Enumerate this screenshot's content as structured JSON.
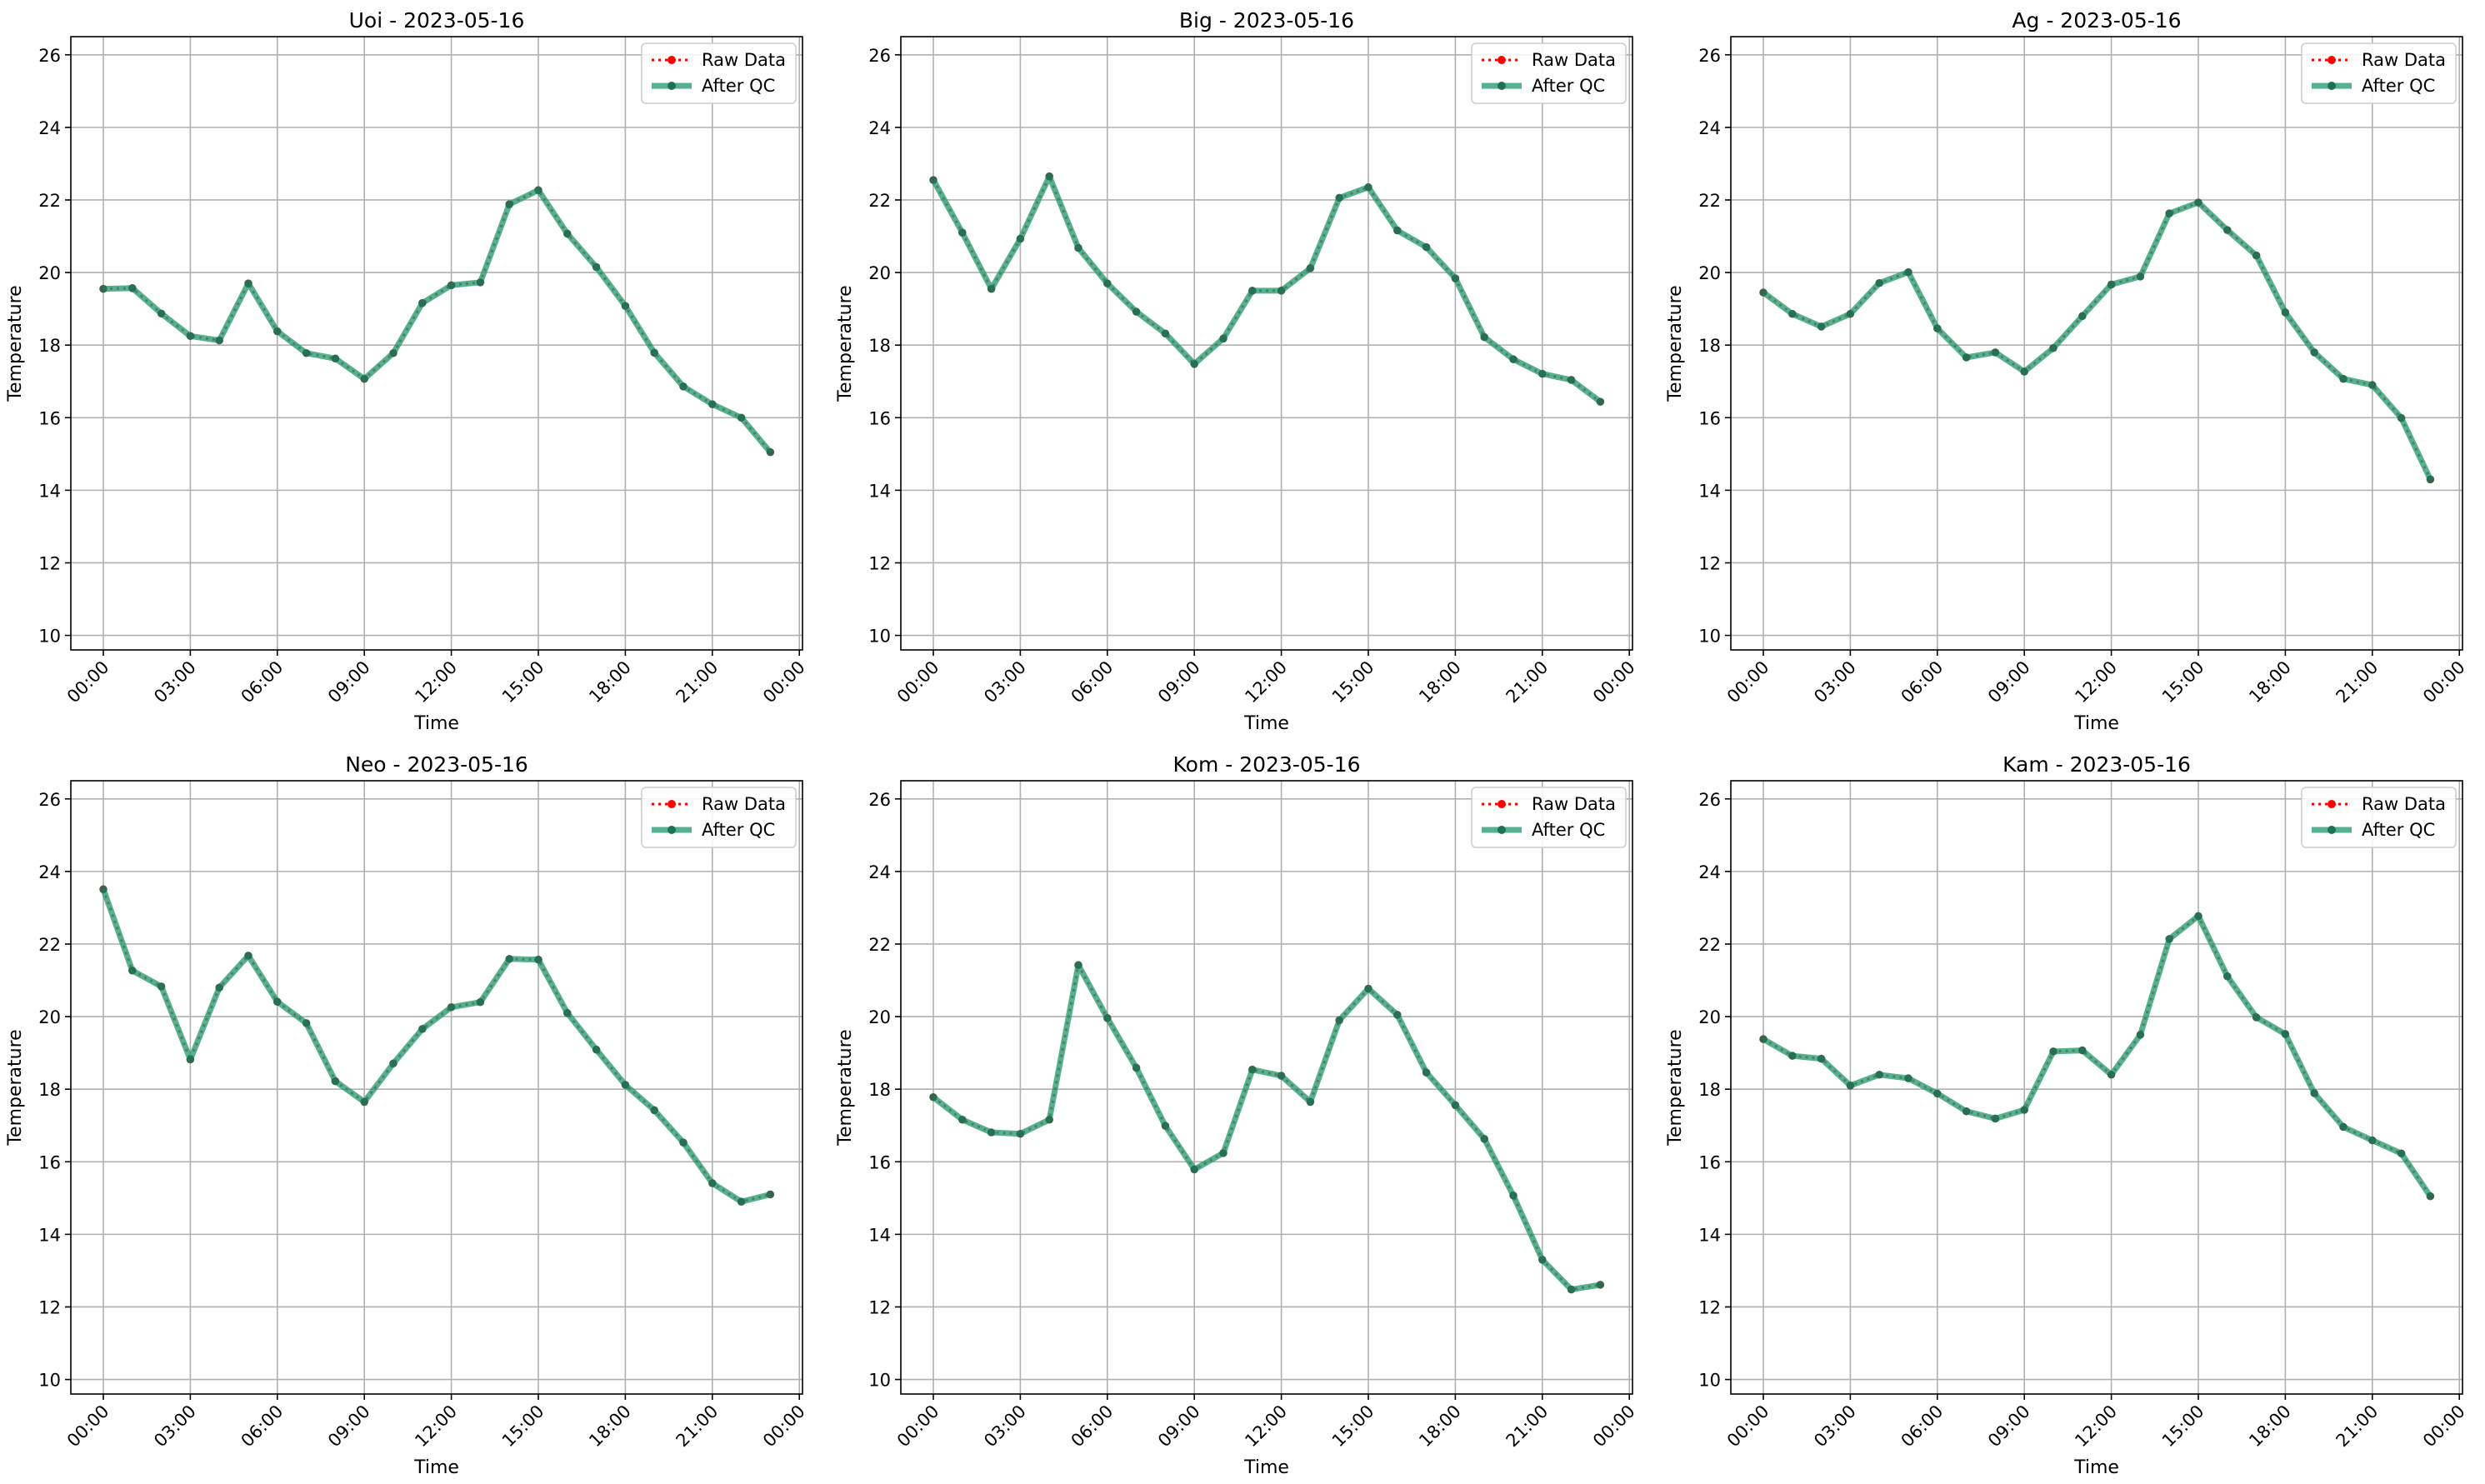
{
  "chart_data": [
    {
      "type": "line",
      "title": "Uoi - 2023-05-16",
      "xlabel": "Time",
      "ylabel": "Temperature",
      "x_ticks": [
        "00:00",
        "03:00",
        "06:00",
        "09:00",
        "12:00",
        "15:00",
        "18:00",
        "21:00",
        "00:00"
      ],
      "y_ticks": [
        "10",
        "12",
        "14",
        "16",
        "18",
        "20",
        "22",
        "24",
        "26"
      ],
      "ylim": [
        9.6,
        26.5
      ],
      "grid": true,
      "legend_position": "top-right",
      "legend": [
        "Raw Data",
        "After QC"
      ],
      "x": [
        "00:00",
        "01:00",
        "02:00",
        "03:00",
        "04:00",
        "05:00",
        "06:00",
        "07:00",
        "08:00",
        "09:00",
        "10:00",
        "11:00",
        "12:00",
        "13:00",
        "14:00",
        "15:00",
        "16:00",
        "17:00",
        "18:00",
        "19:00",
        "20:00",
        "21:00",
        "22:00",
        "23:00"
      ],
      "series": [
        {
          "name": "Raw Data",
          "values": [
            19.55,
            19.57,
            18.87,
            18.25,
            18.13,
            19.7,
            18.38,
            17.78,
            17.63,
            17.07,
            17.78,
            19.16,
            19.65,
            19.73,
            21.88,
            22.27,
            21.07,
            20.15,
            19.08,
            17.79,
            16.86,
            16.37,
            16.0,
            15.05
          ]
        },
        {
          "name": "After QC",
          "values": [
            19.55,
            19.57,
            18.87,
            18.25,
            18.13,
            19.7,
            18.38,
            17.78,
            17.63,
            17.07,
            17.78,
            19.16,
            19.65,
            19.73,
            21.88,
            22.27,
            21.07,
            20.15,
            19.08,
            17.79,
            16.86,
            16.37,
            16.0,
            15.05
          ]
        }
      ]
    },
    {
      "type": "line",
      "title": "Big - 2023-05-16",
      "xlabel": "Time",
      "ylabel": "Temperature",
      "x_ticks": [
        "00:00",
        "03:00",
        "06:00",
        "09:00",
        "12:00",
        "15:00",
        "18:00",
        "21:00",
        "00:00"
      ],
      "y_ticks": [
        "10",
        "12",
        "14",
        "16",
        "18",
        "20",
        "22",
        "24",
        "26"
      ],
      "ylim": [
        9.6,
        26.5
      ],
      "grid": true,
      "legend_position": "top-right",
      "legend": [
        "Raw Data",
        "After QC"
      ],
      "x": [
        "00:00",
        "01:00",
        "02:00",
        "03:00",
        "04:00",
        "05:00",
        "06:00",
        "07:00",
        "08:00",
        "09:00",
        "10:00",
        "11:00",
        "12:00",
        "13:00",
        "14:00",
        "15:00",
        "16:00",
        "17:00",
        "18:00",
        "19:00",
        "20:00",
        "21:00",
        "22:00",
        "23:00"
      ],
      "series": [
        {
          "name": "Raw Data",
          "values": [
            22.55,
            21.1,
            19.55,
            20.93,
            22.65,
            20.68,
            19.7,
            18.92,
            18.32,
            17.48,
            18.18,
            19.5,
            19.5,
            20.12,
            22.06,
            22.35,
            21.16,
            20.7,
            19.84,
            18.22,
            17.61,
            17.21,
            17.04,
            16.44
          ]
        },
        {
          "name": "After QC",
          "values": [
            22.55,
            21.1,
            19.55,
            20.93,
            22.65,
            20.68,
            19.7,
            18.92,
            18.32,
            17.48,
            18.18,
            19.5,
            19.5,
            20.12,
            22.06,
            22.35,
            21.16,
            20.7,
            19.84,
            18.22,
            17.61,
            17.21,
            17.04,
            16.44
          ]
        }
      ]
    },
    {
      "type": "line",
      "title": "Ag - 2023-05-16",
      "xlabel": "Time",
      "ylabel": "Temperature",
      "x_ticks": [
        "00:00",
        "03:00",
        "06:00",
        "09:00",
        "12:00",
        "15:00",
        "18:00",
        "21:00",
        "00:00"
      ],
      "y_ticks": [
        "10",
        "12",
        "14",
        "16",
        "18",
        "20",
        "22",
        "24",
        "26"
      ],
      "ylim": [
        9.6,
        26.5
      ],
      "grid": true,
      "legend_position": "top-right",
      "legend": [
        "Raw Data",
        "After QC"
      ],
      "x": [
        "00:00",
        "01:00",
        "02:00",
        "03:00",
        "04:00",
        "05:00",
        "06:00",
        "07:00",
        "08:00",
        "09:00",
        "10:00",
        "11:00",
        "12:00",
        "13:00",
        "14:00",
        "15:00",
        "16:00",
        "17:00",
        "18:00",
        "19:00",
        "20:00",
        "21:00",
        "22:00",
        "23:00"
      ],
      "series": [
        {
          "name": "Raw Data",
          "values": [
            19.45,
            18.86,
            18.51,
            18.86,
            19.71,
            20.01,
            18.46,
            17.66,
            17.8,
            17.27,
            17.92,
            18.8,
            19.67,
            19.89,
            21.63,
            21.93,
            21.17,
            20.47,
            18.9,
            17.8,
            17.07,
            16.9,
            15.99,
            14.3
          ]
        },
        {
          "name": "After QC",
          "values": [
            19.45,
            18.86,
            18.51,
            18.86,
            19.71,
            20.01,
            18.46,
            17.66,
            17.8,
            17.27,
            17.92,
            18.8,
            19.67,
            19.89,
            21.63,
            21.93,
            21.17,
            20.47,
            18.9,
            17.8,
            17.07,
            16.9,
            15.99,
            14.3
          ]
        }
      ]
    },
    {
      "type": "line",
      "title": "Neo - 2023-05-16",
      "xlabel": "Time",
      "ylabel": "Temperature",
      "x_ticks": [
        "00:00",
        "03:00",
        "06:00",
        "09:00",
        "12:00",
        "15:00",
        "18:00",
        "21:00",
        "00:00"
      ],
      "y_ticks": [
        "10",
        "12",
        "14",
        "16",
        "18",
        "20",
        "22",
        "24",
        "26"
      ],
      "ylim": [
        9.6,
        26.5
      ],
      "grid": true,
      "legend_position": "top-right",
      "legend": [
        "Raw Data",
        "After QC"
      ],
      "x": [
        "00:00",
        "01:00",
        "02:00",
        "03:00",
        "04:00",
        "05:00",
        "06:00",
        "07:00",
        "08:00",
        "09:00",
        "10:00",
        "11:00",
        "12:00",
        "13:00",
        "14:00",
        "15:00",
        "16:00",
        "17:00",
        "18:00",
        "19:00",
        "20:00",
        "21:00",
        "22:00",
        "23:00"
      ],
      "series": [
        {
          "name": "Raw Data",
          "values": [
            23.51,
            21.27,
            20.83,
            18.82,
            20.8,
            21.68,
            20.41,
            19.82,
            18.22,
            17.65,
            18.71,
            19.66,
            20.26,
            20.4,
            21.59,
            21.57,
            20.1,
            19.09,
            18.12,
            17.42,
            16.53,
            15.41,
            14.9,
            15.1
          ]
        },
        {
          "name": "After QC",
          "values": [
            23.51,
            21.27,
            20.83,
            18.82,
            20.8,
            21.68,
            20.41,
            19.82,
            18.22,
            17.65,
            18.71,
            19.66,
            20.26,
            20.4,
            21.59,
            21.57,
            20.1,
            19.09,
            18.12,
            17.42,
            16.53,
            15.41,
            14.9,
            15.1
          ]
        }
      ]
    },
    {
      "type": "line",
      "title": "Kom - 2023-05-16",
      "xlabel": "Time",
      "ylabel": "Temperature",
      "x_ticks": [
        "00:00",
        "03:00",
        "06:00",
        "09:00",
        "12:00",
        "15:00",
        "18:00",
        "21:00",
        "00:00"
      ],
      "y_ticks": [
        "10",
        "12",
        "14",
        "16",
        "18",
        "20",
        "22",
        "24",
        "26"
      ],
      "ylim": [
        9.6,
        26.5
      ],
      "grid": true,
      "legend_position": "top-right",
      "legend": [
        "Raw Data",
        "After QC"
      ],
      "x": [
        "00:00",
        "01:00",
        "02:00",
        "03:00",
        "04:00",
        "05:00",
        "06:00",
        "07:00",
        "08:00",
        "09:00",
        "10:00",
        "11:00",
        "12:00",
        "13:00",
        "14:00",
        "15:00",
        "16:00",
        "17:00",
        "18:00",
        "19:00",
        "20:00",
        "21:00",
        "22:00",
        "23:00"
      ],
      "series": [
        {
          "name": "Raw Data",
          "values": [
            17.78,
            17.16,
            16.81,
            16.77,
            17.16,
            21.42,
            19.96,
            18.59,
            16.99,
            15.79,
            16.24,
            18.54,
            18.37,
            17.65,
            19.9,
            20.77,
            20.05,
            18.46,
            17.56,
            16.63,
            15.07,
            13.3,
            12.48,
            12.61
          ]
        },
        {
          "name": "After QC",
          "values": [
            17.78,
            17.16,
            16.81,
            16.77,
            17.16,
            21.42,
            19.96,
            18.59,
            16.99,
            15.79,
            16.24,
            18.54,
            18.37,
            17.65,
            19.9,
            20.77,
            20.05,
            18.46,
            17.56,
            16.63,
            15.07,
            13.3,
            12.48,
            12.61
          ]
        }
      ]
    },
    {
      "type": "line",
      "title": "Kam - 2023-05-16",
      "xlabel": "Time",
      "ylabel": "Temperature",
      "x_ticks": [
        "00:00",
        "03:00",
        "06:00",
        "09:00",
        "12:00",
        "15:00",
        "18:00",
        "21:00",
        "00:00"
      ],
      "y_ticks": [
        "10",
        "12",
        "14",
        "16",
        "18",
        "20",
        "22",
        "24",
        "26"
      ],
      "ylim": [
        9.6,
        26.5
      ],
      "grid": true,
      "legend_position": "top-right",
      "legend": [
        "Raw Data",
        "After QC"
      ],
      "x": [
        "00:00",
        "01:00",
        "02:00",
        "03:00",
        "04:00",
        "05:00",
        "06:00",
        "07:00",
        "08:00",
        "09:00",
        "10:00",
        "11:00",
        "12:00",
        "13:00",
        "14:00",
        "15:00",
        "16:00",
        "17:00",
        "18:00",
        "19:00",
        "20:00",
        "21:00",
        "22:00",
        "23:00"
      ],
      "series": [
        {
          "name": "Raw Data",
          "values": [
            19.38,
            18.92,
            18.84,
            18.1,
            18.4,
            18.3,
            17.88,
            17.39,
            17.19,
            17.43,
            19.04,
            19.07,
            18.4,
            19.5,
            22.14,
            22.77,
            21.11,
            19.98,
            19.52,
            17.89,
            16.96,
            16.59,
            16.23,
            15.05
          ]
        },
        {
          "name": "After QC",
          "values": [
            19.38,
            18.92,
            18.84,
            18.1,
            18.4,
            18.3,
            17.88,
            17.39,
            17.19,
            17.43,
            19.04,
            19.07,
            18.4,
            19.5,
            22.14,
            22.77,
            21.11,
            19.98,
            19.52,
            17.89,
            16.96,
            16.59,
            16.23,
            15.05
          ]
        }
      ]
    }
  ],
  "colors": {
    "raw": "#ff0000",
    "qc": "#2a9d74",
    "grid": "#b0b0b0",
    "axis": "#000000"
  }
}
